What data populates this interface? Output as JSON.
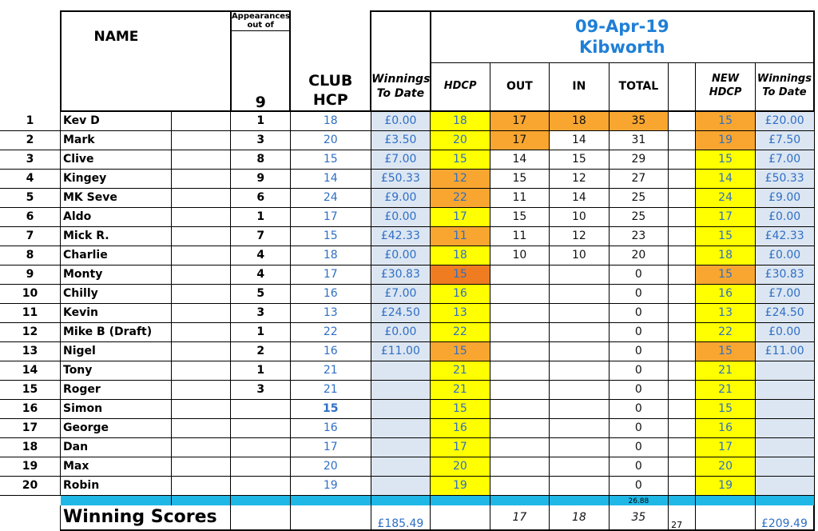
{
  "headers": {
    "name": "NAME",
    "appearances_line1": "Appearances",
    "appearances_line2": "out of",
    "appearances_total": "9",
    "club_hcp_line1": "CLUB",
    "club_hcp_line2": "HCP",
    "winnings_to_date_left": "Winnings To Date",
    "event_date": "09-Apr-19",
    "event_course": "Kibworth",
    "hdcp": "HDCP",
    "out": "OUT",
    "in": "IN",
    "total": "TOTAL",
    "new_hdcp_line1": "NEW",
    "new_hdcp_line2": "HDCP",
    "winnings_right_line1": "Winnings",
    "winnings_right_line2": "To Date"
  },
  "colors": {
    "yellow": "#ffff00",
    "orange": "#f8a630",
    "dark_orange": "#f07c22",
    "light_blue": "#dce6f2",
    "cyan_bar": "#1fb7e6",
    "blue_text": "#2f6fc4"
  },
  "players": [
    {
      "num": "1",
      "name": "Kev D",
      "app": "1",
      "club": "18",
      "win": "£0.00",
      "hdcp": "18",
      "out": "17",
      "in": "18",
      "total": "35",
      "new": "15",
      "win2": "£20.00"
    },
    {
      "num": "2",
      "name": "Mark",
      "app": "3",
      "club": "20",
      "win": "£3.50",
      "hdcp": "20",
      "out": "17",
      "in": "14",
      "total": "31",
      "new": "19",
      "win2": "£7.50"
    },
    {
      "num": "3",
      "name": "Clive",
      "app": "8",
      "club": "15",
      "win": "£7.00",
      "hdcp": "15",
      "out": "14",
      "in": "15",
      "total": "29",
      "new": "15",
      "win2": "£7.00"
    },
    {
      "num": "4",
      "name": "Kingey",
      "app": "9",
      "club": "14",
      "win": "£50.33",
      "hdcp": "12",
      "out": "15",
      "in": "12",
      "total": "27",
      "new": "14",
      "win2": "£50.33"
    },
    {
      "num": "5",
      "name": "MK Seve",
      "app": "6",
      "club": "24",
      "win": "£9.00",
      "hdcp": "22",
      "out": "11",
      "in": "14",
      "total": "25",
      "new": "24",
      "win2": "£9.00"
    },
    {
      "num": "6",
      "name": "Aldo",
      "app": "1",
      "club": "17",
      "win": "£0.00",
      "hdcp": "17",
      "out": "15",
      "in": "10",
      "total": "25",
      "new": "17",
      "win2": "£0.00"
    },
    {
      "num": "7",
      "name": "Mick R.",
      "app": "7",
      "club": "15",
      "win": "£42.33",
      "hdcp": "11",
      "out": "11",
      "in": "12",
      "total": "23",
      "new": "15",
      "win2": "£42.33"
    },
    {
      "num": "8",
      "name": "Charlie",
      "app": "4",
      "club": "18",
      "win": "£0.00",
      "hdcp": "18",
      "out": "10",
      "in": "10",
      "total": "20",
      "new": "18",
      "win2": "£0.00"
    },
    {
      "num": "9",
      "name": "Monty",
      "app": "4",
      "club": "17",
      "win": "£30.83",
      "hdcp": "15",
      "out": "",
      "in": "",
      "total": "0",
      "new": "15",
      "win2": "£30.83"
    },
    {
      "num": "10",
      "name": "Chilly",
      "app": "5",
      "club": "16",
      "win": "£7.00",
      "hdcp": "16",
      "out": "",
      "in": "",
      "total": "0",
      "new": "16",
      "win2": "£7.00"
    },
    {
      "num": "11",
      "name": "Kevin",
      "app": "3",
      "club": "13",
      "win": "£24.50",
      "hdcp": "13",
      "out": "",
      "in": "",
      "total": "0",
      "new": "13",
      "win2": "£24.50"
    },
    {
      "num": "12",
      "name": "Mike B (Draft)",
      "app": "1",
      "club": "22",
      "win": "£0.00",
      "hdcp": "22",
      "out": "",
      "in": "",
      "total": "0",
      "new": "22",
      "win2": "£0.00"
    },
    {
      "num": "13",
      "name": "Nigel",
      "app": "2",
      "club": "16",
      "win": "£11.00",
      "hdcp": "15",
      "out": "",
      "in": "",
      "total": "0",
      "new": "15",
      "win2": "£11.00"
    },
    {
      "num": "14",
      "name": "Tony",
      "app": "1",
      "club": "21",
      "win": "",
      "hdcp": "21",
      "out": "",
      "in": "",
      "total": "0",
      "new": "21",
      "win2": ""
    },
    {
      "num": "15",
      "name": "Roger",
      "app": "3",
      "club": "21",
      "win": "",
      "hdcp": "21",
      "out": "",
      "in": "",
      "total": "0",
      "new": "21",
      "win2": ""
    },
    {
      "num": "16",
      "name": "Simon",
      "app": "",
      "club": "15",
      "win": "",
      "hdcp": "15",
      "out": "",
      "in": "",
      "total": "0",
      "new": "15",
      "win2": ""
    },
    {
      "num": "17",
      "name": "George",
      "app": "",
      "club": "16",
      "win": "",
      "hdcp": "16",
      "out": "",
      "in": "",
      "total": "0",
      "new": "16",
      "win2": ""
    },
    {
      "num": "18",
      "name": "Dan",
      "app": "",
      "club": "17",
      "win": "",
      "hdcp": "17",
      "out": "",
      "in": "",
      "total": "0",
      "new": "17",
      "win2": ""
    },
    {
      "num": "19",
      "name": "Max",
      "app": "",
      "club": "20",
      "win": "",
      "hdcp": "20",
      "out": "",
      "in": "",
      "total": "0",
      "new": "20",
      "win2": ""
    },
    {
      "num": "20",
      "name": "Robin",
      "app": "",
      "club": "19",
      "win": "",
      "hdcp": "19",
      "out": "",
      "in": "",
      "total": "0",
      "new": "19",
      "win2": ""
    }
  ],
  "cell_fills": {
    "hdcp": [
      "yellow",
      "yellow",
      "yellow",
      "orange",
      "orange",
      "yellow",
      "orange",
      "yellow",
      "dark_orange",
      "yellow",
      "yellow",
      "yellow",
      "orange",
      "yellow",
      "yellow",
      "yellow",
      "yellow",
      "yellow",
      "yellow",
      "yellow"
    ],
    "out": [
      "orange",
      "orange",
      "",
      "",
      "",
      "",
      "",
      "",
      "",
      "",
      "",
      "",
      "",
      "",
      "",
      "",
      "",
      "",
      "",
      ""
    ],
    "in": [
      "orange",
      "",
      "",
      "",
      "",
      "",
      "",
      "",
      "",
      "",
      "",
      "",
      "",
      "",
      "",
      "",
      "",
      "",
      "",
      ""
    ],
    "total": [
      "orange",
      "",
      "",
      "",
      "",
      "",
      "",
      "",
      "",
      "",
      "",
      "",
      "",
      "",
      "",
      "",
      "",
      "",
      "",
      ""
    ],
    "new": [
      "orange",
      "orange",
      "yellow",
      "yellow",
      "yellow",
      "yellow",
      "yellow",
      "yellow",
      "orange",
      "yellow",
      "yellow",
      "yellow",
      "orange",
      "yellow",
      "yellow",
      "yellow",
      "yellow",
      "yellow",
      "yellow",
      "yellow"
    ]
  },
  "bar_total": "26.88",
  "footer": {
    "label": "Winning Scores",
    "winnings_left": "£185.49",
    "out": "17",
    "in": "18",
    "total": "35",
    "extra": "27",
    "winnings_right": "£209.49"
  }
}
